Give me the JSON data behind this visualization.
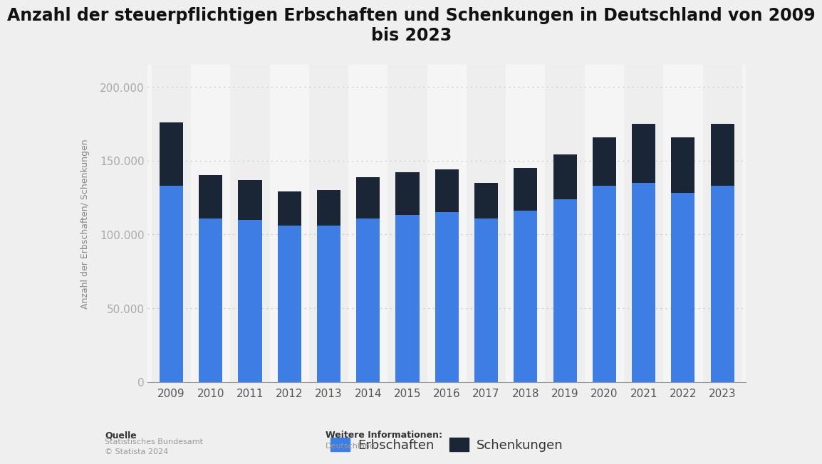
{
  "title": "Anzahl der steuerpflichtigen Erbschaften und Schenkungen in Deutschland von 2009\nbis 2023",
  "years": [
    2009,
    2010,
    2011,
    2012,
    2013,
    2014,
    2015,
    2016,
    2017,
    2018,
    2019,
    2020,
    2021,
    2022,
    2023
  ],
  "erbschaften": [
    133000,
    111000,
    110000,
    106000,
    106000,
    111000,
    113000,
    115000,
    111000,
    116000,
    124000,
    133000,
    135000,
    128000,
    133000
  ],
  "schenkungen": [
    43000,
    29000,
    27000,
    23000,
    24000,
    28000,
    29000,
    29000,
    24000,
    29000,
    30000,
    33000,
    40000,
    38000,
    42000
  ],
  "color_erbschaften": "#3d7de4",
  "color_schenkungen": "#1a2535",
  "color_stripe_dark": "#eeeeee",
  "color_stripe_light": "#f5f5f5",
  "ylabel": "Anzahl der Erbschaften/ Schenkungen",
  "yticks": [
    0,
    50000,
    100000,
    150000,
    200000
  ],
  "ytick_labels": [
    "0",
    "50.000",
    "100.000",
    "150.000",
    "200.000"
  ],
  "ylim": [
    0,
    215000
  ],
  "legend_erbschaften": "Erbschaften",
  "legend_schenkungen": "Schenkungen",
  "source_label": "Quelle",
  "source_text": "Statistisches Bundesamt\n© Statista 2024",
  "info_label": "Weitere Informationen:",
  "info_text": "Deutschland",
  "background_color": "#efefef",
  "plot_background_color": "#f5f5f5",
  "title_fontsize": 17,
  "ylabel_fontsize": 9,
  "tick_fontsize": 11,
  "legend_fontsize": 13
}
